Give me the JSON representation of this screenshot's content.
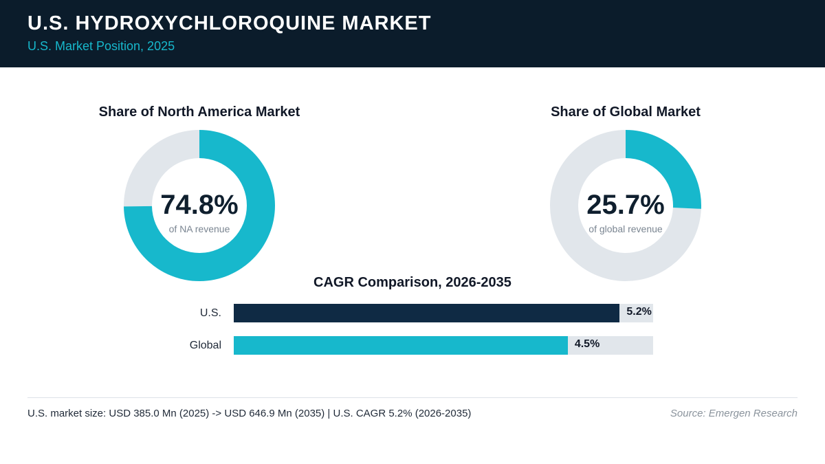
{
  "header": {
    "title": "U.S. HYDROXYCHLOROQUINE MARKET",
    "subtitle": "U.S. Market Position, 2025"
  },
  "colors": {
    "header_bg": "#0b1c2b",
    "accent": "#17b8cc",
    "navy": "#0f2a44",
    "track": "#e1e6eb"
  },
  "chart_data": [
    {
      "type": "pie",
      "variant": "donut",
      "title": "Share of North America Market",
      "value_label": "74.8%",
      "caption": "of NA revenue",
      "value": 74.8,
      "total": 100
    },
    {
      "type": "pie",
      "variant": "donut",
      "title": "Share of Global Market",
      "value_label": "25.7%",
      "caption": "of global revenue",
      "value": 25.7,
      "total": 100
    },
    {
      "type": "bar",
      "orientation": "horizontal",
      "title": "CAGR Comparison, 2026-2035",
      "categories": [
        "U.S.",
        "Global"
      ],
      "values": [
        5.2,
        4.5
      ],
      "value_labels": [
        "5.2%",
        "4.5%"
      ],
      "colors": [
        "#0f2a44",
        "#17b8cc"
      ],
      "xlim": [
        0,
        5.65
      ]
    }
  ],
  "footer": {
    "note": "U.S. market size: USD 385.0 Mn (2025) -> USD 646.9 Mn (2035)  |  U.S. CAGR 5.2% (2026-2035)",
    "source": "Source: Emergen Research"
  }
}
